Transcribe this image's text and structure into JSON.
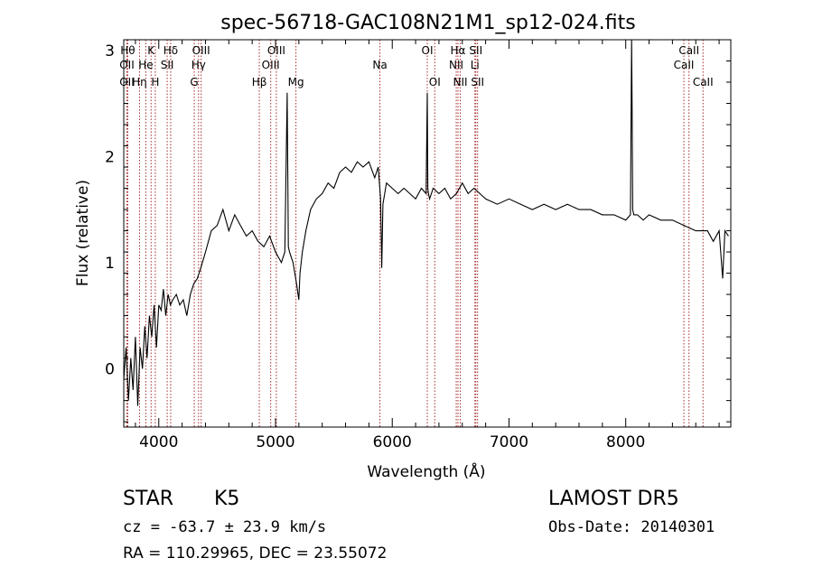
{
  "chart_data": {
    "type": "line",
    "title": "spec-56718-GAC108N21M1_sp12-024.fits",
    "xlabel": "Wavelength (Å)",
    "ylabel": "Flux (relative)",
    "xlim": [
      3700,
      8900
    ],
    "ylim": [
      -0.55,
      3.1
    ],
    "xticks": [
      4000,
      5000,
      6000,
      7000,
      8000
    ],
    "yticks": [
      0,
      1,
      2,
      3
    ],
    "grid": false,
    "series": [
      {
        "color": "#000000",
        "x": [
          3700,
          3720,
          3740,
          3760,
          3780,
          3800,
          3820,
          3840,
          3860,
          3880,
          3900,
          3920,
          3940,
          3960,
          3980,
          4000,
          4020,
          4040,
          4060,
          4080,
          4100,
          4120,
          4150,
          4180,
          4210,
          4240,
          4270,
          4300,
          4330,
          4360,
          4400,
          4450,
          4500,
          4550,
          4600,
          4650,
          4700,
          4750,
          4800,
          4850,
          4900,
          4950,
          5000,
          5050,
          5080,
          5100,
          5110,
          5120,
          5150,
          5180,
          5200,
          5210,
          5230,
          5260,
          5300,
          5350,
          5400,
          5450,
          5500,
          5550,
          5600,
          5650,
          5700,
          5750,
          5800,
          5850,
          5880,
          5900,
          5910,
          5920,
          5950,
          6000,
          6050,
          6100,
          6150,
          6200,
          6250,
          6290,
          6300,
          6305,
          6310,
          6320,
          6350,
          6400,
          6450,
          6500,
          6550,
          6600,
          6650,
          6700,
          6750,
          6800,
          6900,
          7000,
          7100,
          7200,
          7300,
          7400,
          7500,
          7600,
          7700,
          7800,
          7900,
          8000,
          8040,
          8050,
          8055,
          8060,
          8070,
          8100,
          8150,
          8200,
          8300,
          8400,
          8500,
          8600,
          8700,
          8750,
          8800,
          8830,
          8850,
          8880
        ],
        "y": [
          -0.1,
          0.2,
          -0.3,
          0.1,
          -0.2,
          0.3,
          -0.35,
          0.2,
          0.0,
          0.4,
          0.1,
          0.5,
          0.3,
          0.6,
          0.2,
          0.6,
          0.55,
          0.75,
          0.5,
          0.7,
          0.6,
          0.65,
          0.7,
          0.6,
          0.65,
          0.5,
          0.7,
          0.8,
          0.85,
          0.95,
          1.1,
          1.3,
          1.35,
          1.5,
          1.3,
          1.45,
          1.35,
          1.25,
          1.3,
          1.2,
          1.15,
          1.25,
          1.1,
          1.0,
          1.1,
          2.6,
          1.15,
          1.1,
          1.0,
          0.8,
          0.65,
          0.9,
          1.1,
          1.3,
          1.5,
          1.6,
          1.65,
          1.75,
          1.7,
          1.85,
          1.9,
          1.85,
          1.95,
          1.9,
          1.95,
          1.8,
          1.9,
          1.6,
          0.95,
          1.55,
          1.75,
          1.7,
          1.65,
          1.7,
          1.65,
          1.6,
          1.7,
          1.65,
          2.6,
          1.7,
          1.65,
          1.6,
          1.7,
          1.65,
          1.7,
          1.6,
          1.65,
          1.75,
          1.65,
          1.7,
          1.65,
          1.6,
          1.55,
          1.6,
          1.55,
          1.5,
          1.55,
          1.5,
          1.55,
          1.5,
          1.5,
          1.45,
          1.45,
          1.4,
          1.45,
          3.1,
          2.4,
          1.5,
          1.45,
          1.45,
          1.4,
          1.45,
          1.4,
          1.4,
          1.35,
          1.3,
          1.3,
          1.2,
          1.3,
          0.85,
          1.3,
          1.25
        ]
      }
    ],
    "lines": [
      {
        "x": 3734,
        "labels": [
          {
            "text": "Hθ",
            "row": 0
          }
        ]
      },
      {
        "x": 3727,
        "labels": [
          {
            "text": "OII",
            "row": 1
          },
          {
            "text": "OII",
            "row": 2
          }
        ]
      },
      {
        "x": 3835,
        "labels": [
          {
            "text": "Hη",
            "row": 2
          }
        ]
      },
      {
        "x": 3889,
        "labels": [
          {
            "text": "He",
            "row": 1
          }
        ]
      },
      {
        "x": 3934,
        "labels": [
          {
            "text": "K",
            "row": 0
          }
        ]
      },
      {
        "x": 3970,
        "labels": [
          {
            "text": "H",
            "row": 2
          }
        ]
      },
      {
        "x": 4072,
        "labels": [
          {
            "text": "SII",
            "row": 1
          }
        ]
      },
      {
        "x": 4102,
        "labels": [
          {
            "text": "Hδ",
            "row": 0
          }
        ]
      },
      {
        "x": 4304,
        "labels": [
          {
            "text": "G",
            "row": 2
          }
        ]
      },
      {
        "x": 4341,
        "labels": [
          {
            "text": "Hγ",
            "row": 1
          }
        ]
      },
      {
        "x": 4363,
        "labels": [
          {
            "text": "OIII",
            "row": 0
          }
        ]
      },
      {
        "x": 4861,
        "labels": [
          {
            "text": "Hβ",
            "row": 2
          }
        ]
      },
      {
        "x": 4959,
        "labels": [
          {
            "text": "OIII",
            "row": 1
          }
        ]
      },
      {
        "x": 5007,
        "labels": [
          {
            "text": "OIII",
            "row": 0
          }
        ]
      },
      {
        "x": 5175,
        "labels": [
          {
            "text": "Mg",
            "row": 2
          }
        ]
      },
      {
        "x": 5894,
        "labels": [
          {
            "text": "Na",
            "row": 1
          }
        ]
      },
      {
        "x": 6300,
        "labels": [
          {
            "text": "OI",
            "row": 0
          }
        ]
      },
      {
        "x": 6364,
        "labels": [
          {
            "text": "OI",
            "row": 2
          }
        ]
      },
      {
        "x": 6548,
        "labels": [
          {
            "text": "NII",
            "row": 1
          }
        ]
      },
      {
        "x": 6563,
        "labels": [
          {
            "text": "Hα",
            "row": 0
          }
        ]
      },
      {
        "x": 6583,
        "labels": [
          {
            "text": "NII",
            "row": 2
          }
        ]
      },
      {
        "x": 6708,
        "labels": [
          {
            "text": "Li",
            "row": 1
          }
        ]
      },
      {
        "x": 6716,
        "labels": [
          {
            "text": "SII",
            "row": 0
          }
        ]
      },
      {
        "x": 6731,
        "labels": [
          {
            "text": "SII",
            "row": 2
          }
        ]
      },
      {
        "x": 8498,
        "labels": [
          {
            "text": "CaII",
            "row": 1
          }
        ]
      },
      {
        "x": 8542,
        "labels": [
          {
            "text": "CaII",
            "row": 0
          }
        ]
      },
      {
        "x": 8662,
        "labels": [
          {
            "text": "CaII",
            "row": 2
          }
        ]
      }
    ],
    "line_color": "#a52a2a"
  },
  "info": {
    "class_label": "STAR",
    "subclass": "K5",
    "survey": "LAMOST DR5",
    "cz": "cz = -63.7 ± 23.9 km/s",
    "obs_date": "Obs-Date: 20140301",
    "coords": "RA = 110.29965, DEC =  23.55072"
  }
}
